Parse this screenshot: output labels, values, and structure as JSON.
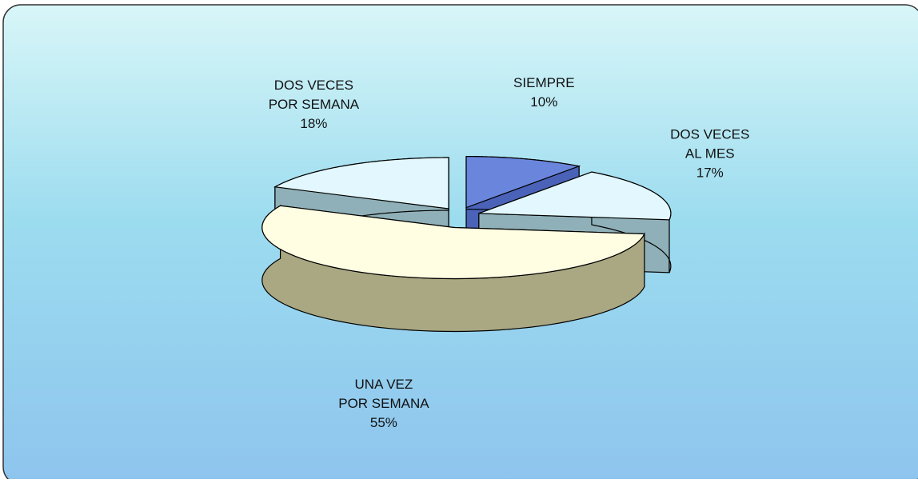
{
  "chart_data": {
    "type": "pie3d",
    "categories": [
      [
        "SIEMPRE"
      ],
      [
        "DOS VECES",
        "AL MES"
      ],
      [
        "UNA VEZ",
        "POR SEMANA"
      ],
      [
        "DOS VECES",
        "POR SEMANA"
      ]
    ],
    "values": [
      10,
      17,
      55,
      18
    ],
    "value_labels": [
      "10%",
      "17%",
      "55%",
      "18%"
    ],
    "colors": [
      "#6a86dc",
      "#e2f8fe",
      "#fffde2",
      "#e2f8fe"
    ],
    "side_colors": [
      "#4a62b8",
      "#8fb0b8",
      "#a9a883",
      "#8fb0b8"
    ]
  }
}
